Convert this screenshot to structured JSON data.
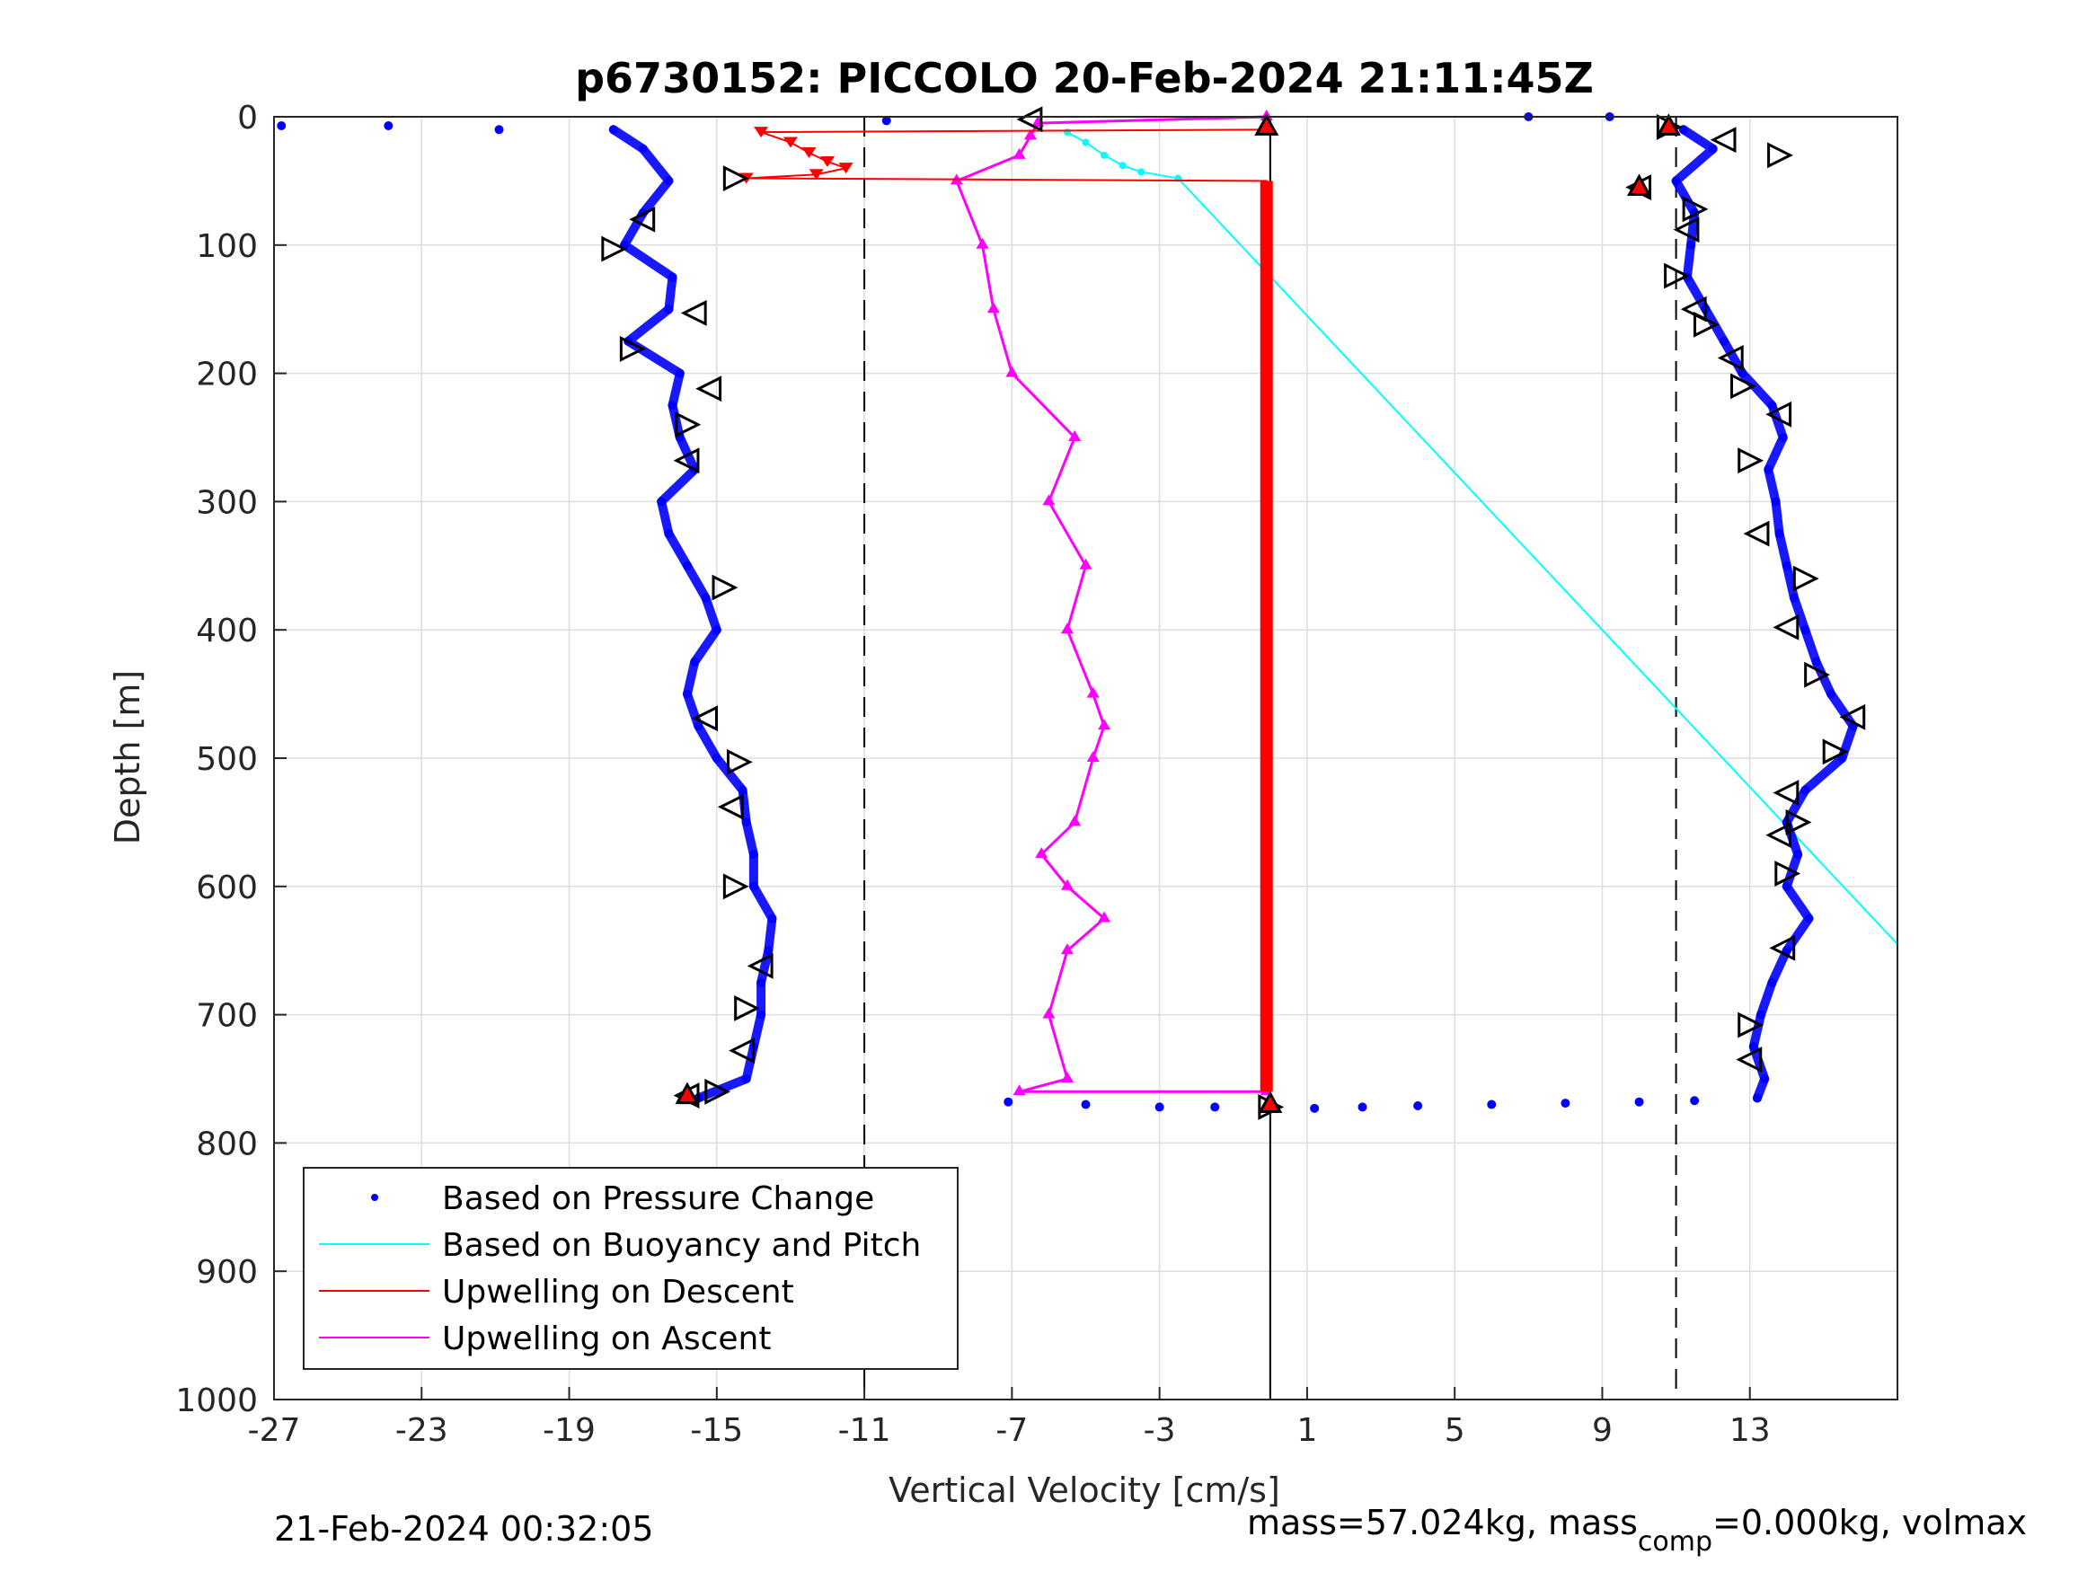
{
  "chart_data": {
    "type": "scatter",
    "title": "p6730152: PICCOLO 20-Feb-2024 21:11:45Z",
    "xlabel": "Vertical Velocity [cm/s]",
    "ylabel": "Depth [m]",
    "xlim": [
      -27,
      17
    ],
    "ylim": [
      0,
      1000
    ],
    "y_reversed": true,
    "grid": true,
    "xticks": [
      -27,
      -23,
      -19,
      -15,
      -11,
      -7,
      -3,
      1,
      5,
      9,
      13
    ],
    "xtick_labels": [
      "-27",
      "-23",
      "-19",
      "-15",
      "-11",
      "-7",
      "-3",
      "1",
      "5",
      "9",
      "13"
    ],
    "yticks": [
      0,
      100,
      200,
      300,
      400,
      500,
      600,
      700,
      800,
      900,
      1000
    ],
    "ytick_labels": [
      "0",
      "100",
      "200",
      "300",
      "400",
      "500",
      "600",
      "700",
      "800",
      "900",
      "1000"
    ],
    "reference_lines": {
      "dashed_x": [
        -11,
        11
      ],
      "solid_x": [
        0
      ]
    },
    "legend_position": "bottom-left",
    "legend": [
      {
        "label": "Based on Pressure Change",
        "marker": "dot",
        "color": "#0000ff"
      },
      {
        "label": "Based on Buoyancy and Pitch",
        "marker": "line",
        "color": "#00ffff"
      },
      {
        "label": "Upwelling on Descent",
        "marker": "line",
        "color": "#ff0000"
      },
      {
        "label": "Upwelling on Ascent",
        "marker": "line",
        "color": "#ff00ff"
      }
    ],
    "series": [
      {
        "name": "Based on Pressure Change",
        "color": "#0000ff",
        "marker": "dot",
        "descent": {
          "depth": [
            10,
            25,
            50,
            75,
            100,
            125,
            150,
            175,
            200,
            225,
            250,
            275,
            300,
            325,
            350,
            375,
            400,
            425,
            450,
            475,
            500,
            525,
            550,
            575,
            600,
            625,
            650,
            675,
            700,
            725,
            750,
            765
          ],
          "velocity": [
            -17.8,
            -17.0,
            -16.3,
            -17.0,
            -17.5,
            -16.2,
            -16.3,
            -17.4,
            -16.0,
            -16.2,
            -16.0,
            -15.6,
            -16.5,
            -16.3,
            -15.8,
            -15.3,
            -15.0,
            -15.6,
            -15.8,
            -15.5,
            -15.0,
            -14.3,
            -14.2,
            -14.0,
            -14.0,
            -13.5,
            -13.6,
            -13.8,
            -13.8,
            -14.0,
            -14.2,
            -15.5
          ]
        },
        "ascent": {
          "depth": [
            765,
            750,
            725,
            700,
            675,
            650,
            625,
            600,
            575,
            550,
            525,
            500,
            475,
            450,
            425,
            400,
            375,
            350,
            325,
            300,
            275,
            250,
            225,
            200,
            175,
            150,
            125,
            100,
            75,
            50,
            25,
            10
          ],
          "velocity": [
            13.2,
            13.4,
            13.1,
            13.3,
            13.6,
            14.0,
            14.6,
            14.0,
            14.3,
            14.0,
            14.5,
            15.5,
            15.8,
            15.2,
            14.8,
            14.5,
            14.2,
            14.0,
            13.8,
            13.7,
            13.5,
            13.9,
            13.6,
            12.8,
            12.3,
            11.8,
            11.3,
            11.4,
            11.5,
            11.0,
            12.0,
            11.2
          ]
        },
        "surface_and_bottom_points": [
          [
            -26.8,
            7
          ],
          [
            -23.9,
            7
          ],
          [
            -20.9,
            10
          ],
          [
            -10.4,
            3
          ],
          [
            7.0,
            0
          ],
          [
            9.2,
            0
          ],
          [
            -7.1,
            768
          ],
          [
            -5.0,
            770
          ],
          [
            -3.0,
            772
          ],
          [
            -1.5,
            772
          ],
          [
            1.2,
            773
          ],
          [
            2.5,
            772
          ],
          [
            4.0,
            771
          ],
          [
            6.0,
            770
          ],
          [
            8.0,
            769
          ],
          [
            10.0,
            768
          ],
          [
            11.5,
            767
          ]
        ]
      },
      {
        "name": "Based on Buoyancy and Pitch",
        "color": "#00ffff",
        "marker": "line",
        "points": [
          [
            -5.5,
            12
          ],
          [
            -5.0,
            20
          ],
          [
            -4.5,
            30
          ],
          [
            -4.0,
            38
          ],
          [
            -3.5,
            43
          ],
          [
            -2.5,
            48
          ],
          [
            17.0,
            645
          ]
        ]
      },
      {
        "name": "Upwelling on Descent",
        "color": "#ff0000",
        "marker": "line",
        "points": [
          [
            -0.1,
            0
          ],
          [
            -0.1,
            10
          ],
          [
            -13.8,
            12
          ],
          [
            -13.0,
            20
          ],
          [
            -12.5,
            28
          ],
          [
            -12.0,
            35
          ],
          [
            -11.5,
            40
          ],
          [
            -12.3,
            45
          ],
          [
            -14.2,
            48
          ],
          [
            -0.1,
            50
          ],
          [
            -0.1,
            760
          ]
        ]
      },
      {
        "name": "Upwelling on Ascent",
        "color": "#ff00ff",
        "marker": "line",
        "points": [
          [
            -0.1,
            0
          ],
          [
            -6.3,
            5
          ],
          [
            -6.5,
            15
          ],
          [
            -6.8,
            30
          ],
          [
            -8.5,
            50
          ],
          [
            -7.8,
            100
          ],
          [
            -7.5,
            150
          ],
          [
            -7.0,
            200
          ],
          [
            -5.3,
            250
          ],
          [
            -6.0,
            300
          ],
          [
            -5.0,
            350
          ],
          [
            -5.5,
            400
          ],
          [
            -4.8,
            450
          ],
          [
            -4.5,
            475
          ],
          [
            -4.8,
            500
          ],
          [
            -5.3,
            550
          ],
          [
            -6.2,
            575
          ],
          [
            -5.5,
            600
          ],
          [
            -4.5,
            625
          ],
          [
            -5.5,
            650
          ],
          [
            -6.0,
            700
          ],
          [
            -5.5,
            750
          ],
          [
            -6.8,
            760
          ],
          [
            -0.1,
            760
          ]
        ]
      }
    ],
    "triangle_markers": {
      "color": "#000000",
      "left_branch": [
        [
          -6.5,
          2
        ],
        [
          -14.5,
          48
        ],
        [
          -17.0,
          80
        ],
        [
          -17.8,
          103
        ],
        [
          -15.6,
          153
        ],
        [
          -17.3,
          181
        ],
        [
          -15.2,
          212
        ],
        [
          -15.8,
          240
        ],
        [
          -15.8,
          268
        ],
        [
          -14.8,
          367
        ],
        [
          -15.3,
          469
        ],
        [
          -14.4,
          503
        ],
        [
          -14.6,
          538
        ],
        [
          -14.5,
          600
        ],
        [
          -13.8,
          662
        ],
        [
          -14.2,
          695
        ],
        [
          -14.3,
          728
        ],
        [
          -15.0,
          760
        ],
        [
          -15.8,
          763
        ]
      ],
      "right_branch": [
        [
          10.8,
          8
        ],
        [
          12.3,
          18
        ],
        [
          13.8,
          30
        ],
        [
          10.0,
          55
        ],
        [
          11.5,
          72
        ],
        [
          11.3,
          88
        ],
        [
          11.0,
          124
        ],
        [
          11.5,
          150
        ],
        [
          11.8,
          162
        ],
        [
          12.5,
          188
        ],
        [
          12.8,
          210
        ],
        [
          13.8,
          232
        ],
        [
          13.0,
          268
        ],
        [
          13.2,
          325
        ],
        [
          14.5,
          360
        ],
        [
          14.0,
          398
        ],
        [
          14.8,
          435
        ],
        [
          15.8,
          468
        ],
        [
          15.3,
          495
        ],
        [
          14.0,
          527
        ],
        [
          14.3,
          550
        ],
        [
          13.8,
          560
        ],
        [
          14.0,
          590
        ],
        [
          13.9,
          648
        ],
        [
          13.0,
          708
        ],
        [
          13.0,
          735
        ],
        [
          0.0,
          772
        ]
      ],
      "red_highlights": [
        [
          10.8,
          8
        ],
        [
          10.0,
          55
        ],
        [
          -15.8,
          763
        ],
        [
          0.0,
          770
        ],
        [
          -0.1,
          8
        ]
      ]
    }
  },
  "footer": {
    "timestamp": "21-Feb-2024 00:32:05",
    "mass_text": "mass=57.024kg, mass",
    "mass_sub": "comp",
    "mass_rest": "=0.000kg, volmax"
  }
}
